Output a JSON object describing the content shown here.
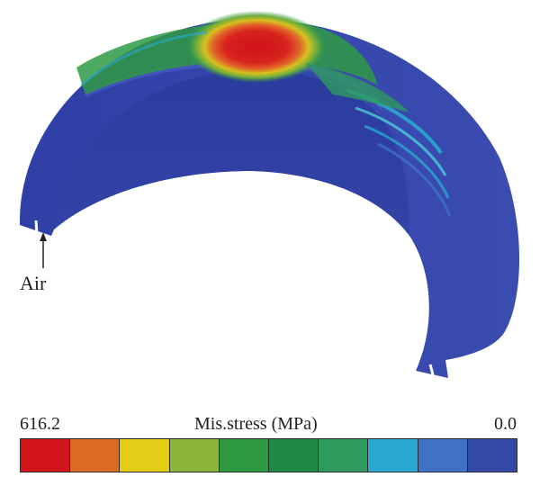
{
  "figure": {
    "annotation_label": "Air"
  },
  "legend": {
    "title": "Mis.stress (MPa)",
    "max_label": "616.2",
    "min_label": "0.0",
    "colors": [
      "#d2161c",
      "#dd6b25",
      "#e3cd17",
      "#8db53a",
      "#2f9a40",
      "#1f8a45",
      "#2e9a5e",
      "#2aa8cf",
      "#3f72c6",
      "#3549a8"
    ]
  }
}
